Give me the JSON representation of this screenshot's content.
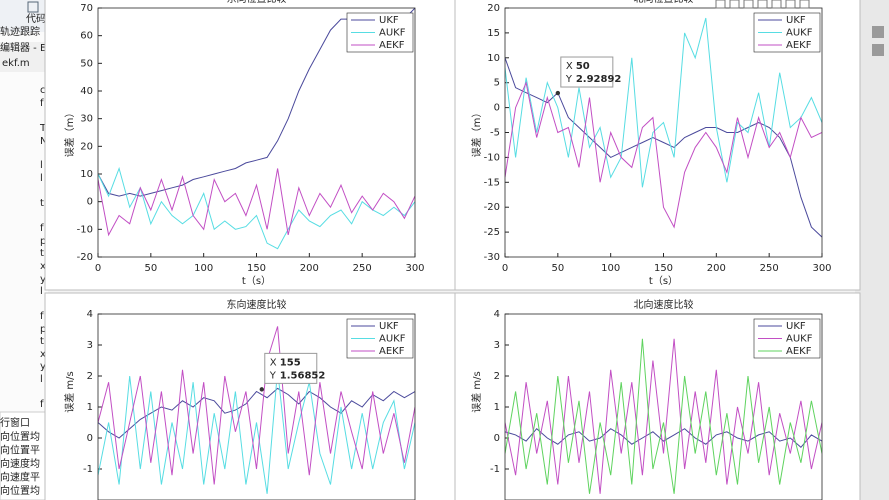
{
  "editor": {
    "tab": "代码",
    "title": "轨迹跟踪",
    "path": "编辑器 - E:\\Si",
    "file": "ekf.m",
    "code": [
      "c",
      "f",
      "T",
      "N",
      "l",
      "l",
      "t",
      "f",
      "p",
      "t",
      "x",
      "y",
      "l",
      "f",
      "p",
      "t",
      "x",
      "y",
      "l",
      "f"
    ],
    "command_window": "行窗口",
    "output": [
      "向位置均",
      "向位置平",
      "向速度均",
      "向速度平",
      "向位置均"
    ]
  },
  "chart_data": [
    {
      "type": "line",
      "title": "东向位置比较",
      "xlabel": "t（s）",
      "ylabel": "误差（m）",
      "x": [
        0,
        10,
        20,
        30,
        40,
        50,
        60,
        70,
        80,
        90,
        100,
        110,
        120,
        130,
        140,
        150,
        160,
        170,
        180,
        190,
        200,
        210,
        220,
        230,
        240,
        250,
        260,
        270,
        280,
        290,
        300
      ],
      "xlim": [
        0,
        300
      ],
      "xticks": [
        0,
        50,
        100,
        150,
        200,
        250,
        300
      ],
      "ylim": [
        -20,
        70
      ],
      "yticks": [
        -20,
        -10,
        0,
        10,
        20,
        30,
        40,
        50,
        60,
        70
      ],
      "series": [
        {
          "name": "UKF",
          "color": "#4b4a9c",
          "values": [
            10,
            3,
            2,
            3,
            2,
            3,
            4,
            5,
            6,
            8,
            9,
            10,
            11,
            12,
            14,
            15,
            16,
            22,
            30,
            40,
            48,
            55,
            62,
            66,
            66,
            60,
            57,
            60,
            63,
            66,
            70
          ]
        },
        {
          "name": "AUKF",
          "color": "#57dde3",
          "values": [
            10,
            2,
            12,
            -2,
            5,
            -8,
            0,
            -5,
            -8,
            -5,
            3,
            -10,
            -7,
            -10,
            -9,
            -5,
            -15,
            -17,
            -10,
            -3,
            -7,
            -9,
            -5,
            -3,
            -8,
            0,
            -3,
            -5,
            -2,
            -5,
            0
          ]
        },
        {
          "name": "AEKF",
          "color": "#c24fc4",
          "values": [
            8,
            -12,
            -5,
            -8,
            5,
            -3,
            8,
            -3,
            9,
            -5,
            -10,
            8,
            0,
            3,
            -5,
            6,
            -10,
            12,
            -12,
            5,
            -5,
            3,
            -2,
            6,
            -4,
            2,
            -3,
            3,
            0,
            -6,
            2
          ]
        }
      ]
    },
    {
      "type": "line",
      "title": "北向位置比较",
      "xlabel": "t（s）",
      "ylabel": "误差（m）",
      "x": [
        0,
        10,
        20,
        30,
        40,
        50,
        60,
        70,
        80,
        90,
        100,
        110,
        120,
        130,
        140,
        150,
        160,
        170,
        180,
        190,
        200,
        210,
        220,
        230,
        240,
        250,
        260,
        270,
        280,
        290,
        300
      ],
      "xlim": [
        0,
        300
      ],
      "xticks": [
        0,
        50,
        100,
        150,
        200,
        250,
        300
      ],
      "ylim": [
        -30,
        20
      ],
      "yticks": [
        -30,
        -25,
        -20,
        -15,
        -10,
        -5,
        0,
        5,
        10,
        15,
        20
      ],
      "datatip": {
        "x_label": "X",
        "x": 50,
        "y_label": "Y",
        "y": 2.92892
      },
      "series": [
        {
          "name": "UKF",
          "color": "#4b4a9c",
          "values": [
            10,
            4,
            3,
            2,
            1,
            3,
            -2,
            -4,
            -6,
            -8,
            -10,
            -9,
            -8,
            -7,
            -6,
            -7,
            -8,
            -6,
            -5,
            -4,
            -4,
            -5,
            -5,
            -4,
            -3,
            -4,
            -6,
            -10,
            -18,
            -24,
            -26
          ]
        },
        {
          "name": "AUKF",
          "color": "#57dde3",
          "values": [
            8,
            -10,
            6,
            -5,
            5,
            0,
            -10,
            4,
            -8,
            -4,
            -14,
            -10,
            10,
            -16,
            -5,
            -3,
            -10,
            15,
            10,
            18,
            -4,
            -15,
            -3,
            -5,
            3,
            -8,
            7,
            -4,
            -2,
            2,
            -3
          ]
        },
        {
          "name": "AEKF",
          "color": "#c24fc4",
          "values": [
            -14,
            0,
            5,
            -6,
            2,
            -5,
            -4,
            -12,
            2,
            -15,
            -5,
            -10,
            -12,
            -4,
            -2,
            -20,
            -24,
            -13,
            -8,
            -5,
            -8,
            -13,
            -2,
            -10,
            -2,
            -8,
            -5,
            -10,
            -2,
            -6,
            -5
          ]
        }
      ]
    },
    {
      "type": "line",
      "title": "东向速度比较",
      "ylabel": "误差 m/s",
      "x": [
        0,
        10,
        20,
        30,
        40,
        50,
        60,
        70,
        80,
        90,
        100,
        110,
        120,
        130,
        140,
        150,
        160,
        170,
        180,
        190,
        200,
        210,
        220,
        230,
        240,
        250,
        260,
        270,
        280,
        290,
        300
      ],
      "xlim": [
        0,
        300
      ],
      "ylim": [
        -2,
        4
      ],
      "yticks": [
        -1,
        0,
        1,
        2,
        3,
        4
      ],
      "datatip": {
        "x_label": "X",
        "x": 155,
        "y_label": "Y",
        "y": 1.56852
      },
      "series": [
        {
          "name": "UKF",
          "color": "#4b4a9c",
          "values": [
            0.5,
            0.2,
            0,
            0.3,
            0.6,
            0.8,
            1,
            0.9,
            1.2,
            1.0,
            1.3,
            1.2,
            0.8,
            0.9,
            1.1,
            1.5,
            1.3,
            1.6,
            1.4,
            1.1,
            1.5,
            1.3,
            1.0,
            0.8,
            1.2,
            1.0,
            1.4,
            1.2,
            1.5,
            1.3,
            1.5
          ]
        },
        {
          "name": "AUKF",
          "color": "#57dde3",
          "values": [
            -1.2,
            0.5,
            -1.5,
            2.0,
            -1.0,
            1.5,
            -1.5,
            0.5,
            -1.0,
            1.8,
            -1.5,
            0.8,
            -1.0,
            1.5,
            -1.5,
            0.5,
            -1.8,
            2.2,
            -1.0,
            0.5,
            1.8,
            -0.5,
            -1.5,
            1.0,
            -1.0,
            0.8,
            -1.0,
            0.5,
            1.2,
            -1.0,
            0.5
          ]
        },
        {
          "name": "AEKF",
          "color": "#c24fc4",
          "values": [
            0.5,
            1.8,
            -1.0,
            0.5,
            2.0,
            -0.8,
            1.5,
            -1.2,
            2.2,
            -0.5,
            1.8,
            -1.5,
            2.0,
            0.2,
            1.5,
            -1.0,
            2.5,
            3.6,
            -0.5,
            1.5,
            -1.2,
            1.8,
            -0.5,
            1.5,
            0.2,
            -1.0,
            1.5,
            -0.5,
            0.8,
            -0.8,
            1.0
          ]
        }
      ]
    },
    {
      "type": "line",
      "title": "北向速度比较",
      "ylabel": "误差 m/s",
      "x": [
        0,
        10,
        20,
        30,
        40,
        50,
        60,
        70,
        80,
        90,
        100,
        110,
        120,
        130,
        140,
        150,
        160,
        170,
        180,
        190,
        200,
        210,
        220,
        230,
        240,
        250,
        260,
        270,
        280,
        290,
        300
      ],
      "xlim": [
        0,
        300
      ],
      "ylim": [
        -2,
        4
      ],
      "yticks": [
        -1,
        0,
        1,
        2,
        3,
        4
      ],
      "series": [
        {
          "name": "UKF",
          "color": "#4b4a9c",
          "values": [
            0.2,
            0.1,
            -0.1,
            0.3,
            0.0,
            -0.2,
            0.1,
            0.2,
            -0.1,
            0.0,
            0.3,
            0.1,
            -0.2,
            0.0,
            0.2,
            -0.1,
            0.1,
            0.3,
            0.0,
            -0.2,
            0.1,
            0.2,
            0.0,
            -0.1,
            0.1,
            0.2,
            -0.1,
            0.0,
            -0.3,
            0.1,
            -0.1
          ]
        },
        {
          "name": "AUKF",
          "color": "#c24fc4",
          "values": [
            0.5,
            -1.2,
            1.8,
            -0.5,
            1.2,
            -1.5,
            2.0,
            -0.8,
            1.5,
            -1.8,
            2.2,
            -0.5,
            1.8,
            -1.2,
            2.5,
            -0.5,
            3.2,
            -1.0,
            1.5,
            -0.8,
            2.2,
            -1.5,
            1.0,
            -0.5,
            1.8,
            -1.2,
            0.8,
            -0.5,
            1.2,
            -1.0,
            0.5
          ]
        },
        {
          "name": "AEKF",
          "color": "#5fd35f",
          "values": [
            -0.5,
            1.5,
            -1.0,
            0.8,
            -1.5,
            2.0,
            -0.8,
            1.2,
            -1.8,
            0.5,
            -1.2,
            1.8,
            -1.5,
            3.2,
            -1.0,
            0.5,
            -1.8,
            2.0,
            -0.5,
            1.5,
            -1.2,
            0.8,
            -1.5,
            2.0,
            -0.8,
            1.0,
            -1.5,
            0.5,
            -0.8,
            1.2,
            -0.5
          ]
        }
      ]
    }
  ]
}
